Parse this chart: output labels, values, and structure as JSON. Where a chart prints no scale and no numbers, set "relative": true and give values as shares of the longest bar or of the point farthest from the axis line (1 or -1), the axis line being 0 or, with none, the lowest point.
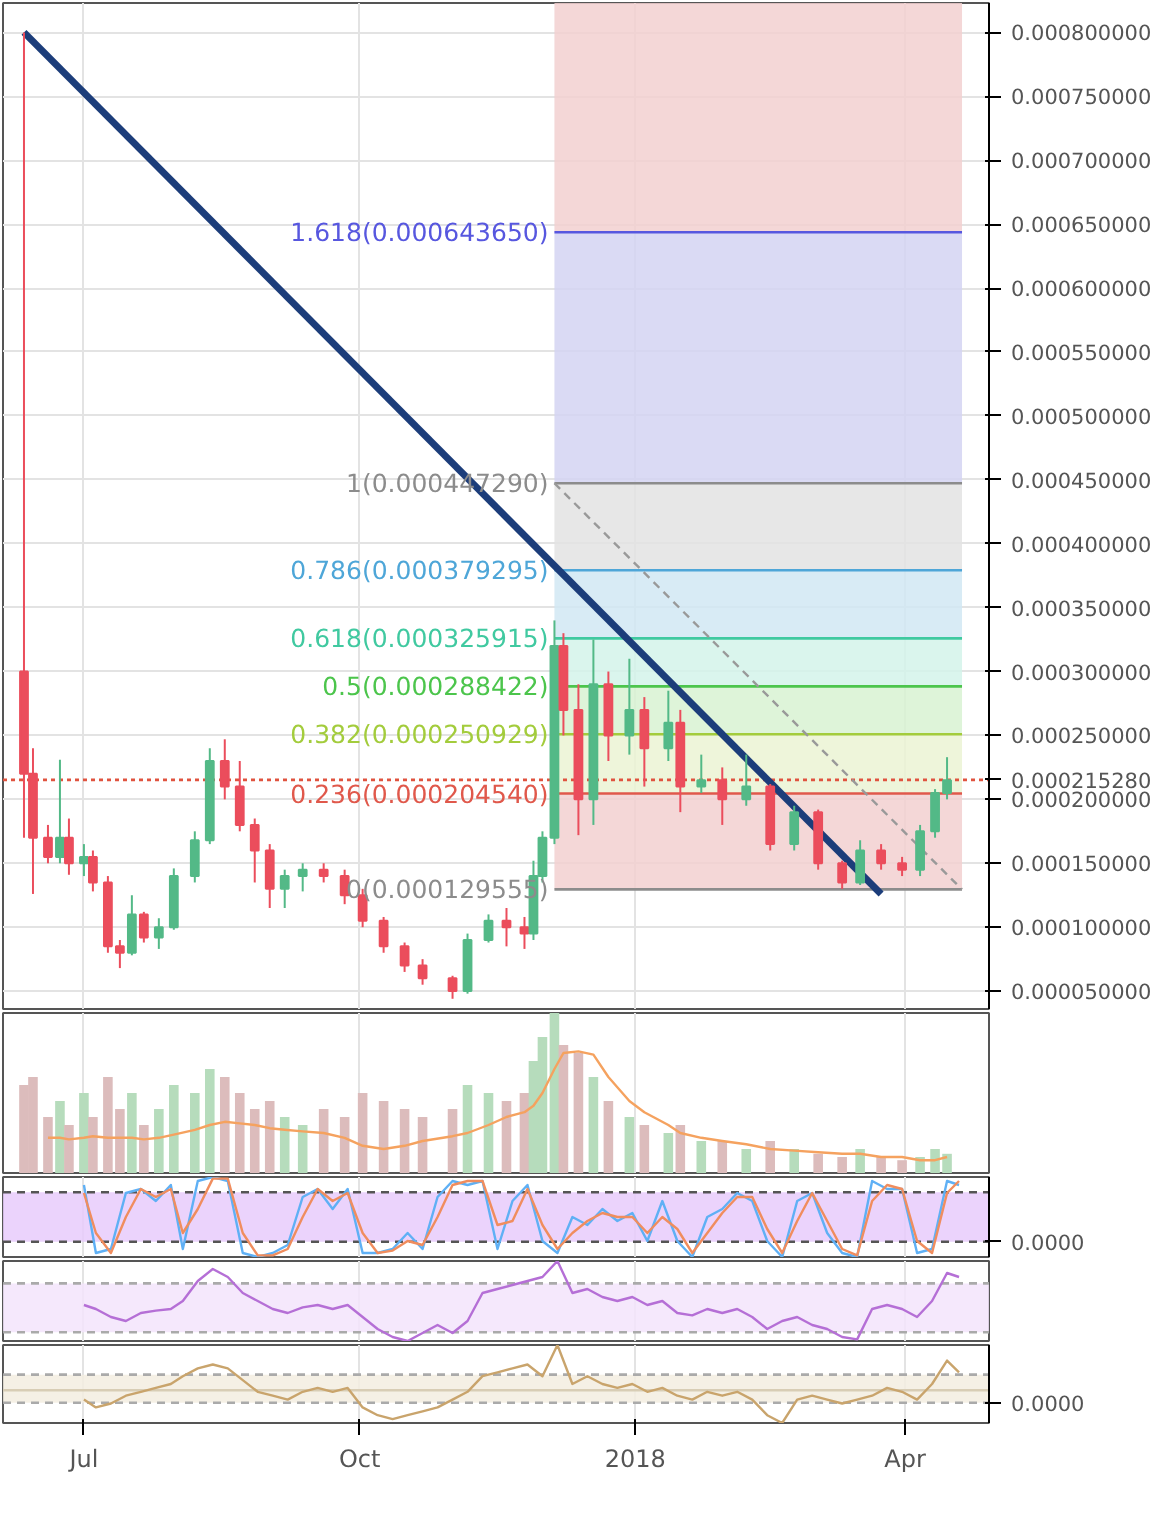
{
  "chart_data": [
    {
      "type": "candlestick",
      "xlim": [
        "2017-06-04",
        "2018-04-29"
      ],
      "ylim": [
        3.6e-05,
        0.000823
      ],
      "tick_labels": "y",
      "grid": true,
      "xticks": [
        {
          "value": "2017-07-01",
          "label": null
        },
        {
          "value": "2017-10-01",
          "label": null
        },
        {
          "value": "2018-01-01",
          "label": null
        },
        {
          "value": "2018-04-01",
          "label": null
        }
      ],
      "yticks": [
        {
          "value": 5e-05,
          "label": "0.000050000"
        },
        {
          "value": 0.0001,
          "label": "0.000100000"
        },
        {
          "value": 0.00015,
          "label": "0.000150000"
        },
        {
          "value": 0.0002,
          "label": "0.000200000"
        },
        {
          "value": 0.00025,
          "label": "0.000250000"
        },
        {
          "value": 0.0003,
          "label": "0.000300000"
        },
        {
          "value": 0.00035,
          "label": "0.000350000"
        },
        {
          "value": 0.0004,
          "label": "0.000400000"
        },
        {
          "value": 0.00045,
          "label": "0.000450000"
        },
        {
          "value": 0.0005,
          "label": "0.000500000"
        },
        {
          "value": 0.00055,
          "label": "0.000550000"
        },
        {
          "value": 0.0006,
          "label": "0.000600000"
        },
        {
          "value": 0.00065,
          "label": "0.000650000"
        },
        {
          "value": 0.0007,
          "label": "0.000700000"
        },
        {
          "value": 0.00075,
          "label": "0.000750000"
        },
        {
          "value": 0.0008,
          "label": "0.000800000"
        }
      ],
      "x": [
        "2017-06-11",
        "2017-06-14",
        "2017-06-19",
        "2017-06-23",
        "2017-06-26",
        "2017-07-01",
        "2017-07-04",
        "2017-07-09",
        "2017-07-13",
        "2017-07-17",
        "2017-07-21",
        "2017-07-26",
        "2017-07-31",
        "2017-08-07",
        "2017-08-12",
        "2017-08-17",
        "2017-08-22",
        "2017-08-27",
        "2017-09-01",
        "2017-09-06",
        "2017-09-12",
        "2017-09-19",
        "2017-09-26",
        "2017-10-02",
        "2017-10-09",
        "2017-10-16",
        "2017-10-22",
        "2017-11-01",
        "2017-11-06",
        "2017-11-13",
        "2017-11-19",
        "2017-11-25",
        "2017-11-28",
        "2017-12-01",
        "2017-12-05",
        "2017-12-08",
        "2017-12-13",
        "2017-12-18",
        "2017-12-23",
        "2017-12-30",
        "2018-01-04",
        "2018-01-12",
        "2018-01-16",
        "2018-01-23",
        "2018-01-30",
        "2018-02-07",
        "2018-02-15",
        "2018-02-23",
        "2018-03-03",
        "2018-03-11",
        "2018-03-17",
        "2018-03-24",
        "2018-03-31",
        "2018-04-06",
        "2018-04-11",
        "2018-04-15"
      ],
      "ohlc": [
        [
          0.0003,
          0.0008,
          0.00017,
          0.00022
        ],
        [
          0.00022,
          0.00024,
          0.000126,
          0.00017
        ],
        [
          0.00017,
          0.00018,
          0.00015,
          0.000155
        ],
        [
          0.000155,
          0.000231,
          0.00015,
          0.00017
        ],
        [
          0.00017,
          0.000185,
          0.000141,
          0.00015
        ],
        [
          0.00015,
          0.000165,
          0.00014,
          0.000155
        ],
        [
          0.000155,
          0.00016,
          0.000128,
          0.000135
        ],
        [
          0.000135,
          0.00014,
          8e-05,
          8.5e-05
        ],
        [
          8.5e-05,
          9e-05,
          6.8e-05,
          8e-05
        ],
        [
          8e-05,
          0.000125,
          7.8e-05,
          0.00011
        ],
        [
          0.00011,
          0.000112,
          8.8e-05,
          9.2e-05
        ],
        [
          9.2e-05,
          0.000107,
          8.3e-05,
          0.0001
        ],
        [
          0.0001,
          0.000146,
          9.8e-05,
          0.00014
        ],
        [
          0.00014,
          0.000175,
          0.000135,
          0.000168
        ],
        [
          0.000168,
          0.00024,
          0.000165,
          0.00023
        ],
        [
          0.00023,
          0.000247,
          0.0002,
          0.00021
        ],
        [
          0.00021,
          0.00023,
          0.000175,
          0.00018
        ],
        [
          0.00018,
          0.000185,
          0.000135,
          0.00016
        ],
        [
          0.00016,
          0.000165,
          0.000115,
          0.00013
        ],
        [
          0.00013,
          0.000145,
          0.000115,
          0.00014
        ],
        [
          0.00014,
          0.00015,
          0.000128,
          0.000145
        ],
        [
          0.000145,
          0.00015,
          0.000135,
          0.00014
        ],
        [
          0.00014,
          0.000145,
          0.000118,
          0.000125
        ],
        [
          0.000125,
          0.00013,
          0.0001,
          0.000105
        ],
        [
          0.000105,
          0.000108,
          8e-05,
          8.5e-05
        ],
        [
          8.5e-05,
          8.8e-05,
          6.5e-05,
          7e-05
        ],
        [
          7e-05,
          7.5e-05,
          5.5e-05,
          6e-05
        ],
        [
          6e-05,
          6.2e-05,
          4.4e-05,
          5e-05
        ],
        [
          5e-05,
          9.5e-05,
          4.8e-05,
          9e-05
        ],
        [
          9e-05,
          0.00011,
          8.8e-05,
          0.000105
        ],
        [
          0.000105,
          0.000115,
          8.5e-05,
          0.0001
        ],
        [
          0.0001,
          0.000108,
          8.3e-05,
          9.5e-05
        ],
        [
          9.5e-05,
          0.000152,
          9e-05,
          0.00014
        ],
        [
          0.00014,
          0.000175,
          0.000135,
          0.00017
        ],
        [
          0.00017,
          0.00034,
          0.000165,
          0.00032
        ],
        [
          0.00032,
          0.00033,
          0.00025,
          0.00027
        ],
        [
          0.00027,
          0.00029,
          0.000172,
          0.0002
        ],
        [
          0.0002,
          0.000325,
          0.00018,
          0.00029
        ],
        [
          0.00029,
          0.0003,
          0.00023,
          0.00025
        ],
        [
          0.00025,
          0.00031,
          0.000235,
          0.00027
        ],
        [
          0.00027,
          0.00028,
          0.00021,
          0.00024
        ],
        [
          0.00024,
          0.000285,
          0.00023,
          0.00026
        ],
        [
          0.00026,
          0.00027,
          0.00019,
          0.00021
        ],
        [
          0.00021,
          0.000235,
          0.000205,
          0.000215
        ],
        [
          0.000215,
          0.000225,
          0.00018,
          0.0002
        ],
        [
          0.0002,
          0.000235,
          0.000195,
          0.00021
        ],
        [
          0.00021,
          0.000212,
          0.00016,
          0.000165
        ],
        [
          0.000165,
          0.000195,
          0.00016,
          0.00019
        ],
        [
          0.00019,
          0.000192,
          0.000145,
          0.00015
        ],
        [
          0.00015,
          0.000152,
          0.00013,
          0.000135
        ],
        [
          0.000135,
          0.000168,
          0.000133,
          0.00016
        ],
        [
          0.00016,
          0.000165,
          0.000145,
          0.00015
        ],
        [
          0.00015,
          0.000155,
          0.00014,
          0.000145
        ],
        [
          0.000145,
          0.00018,
          0.00014,
          0.000175
        ],
        [
          0.000175,
          0.000208,
          0.00017,
          0.000205
        ],
        [
          0.000205,
          0.000233,
          0.0002,
          0.000215
        ]
      ],
      "colors": [
        "#eb4d5c",
        "#eb4d5c",
        "#eb4d5c",
        "#53b987",
        "#eb4d5c",
        "#53b987",
        "#eb4d5c",
        "#eb4d5c",
        "#eb4d5c",
        "#53b987",
        "#eb4d5c",
        "#53b987",
        "#53b987",
        "#53b987",
        "#53b987",
        "#eb4d5c",
        "#eb4d5c",
        "#eb4d5c",
        "#eb4d5c",
        "#53b987",
        "#53b987",
        "#eb4d5c",
        "#eb4d5c",
        "#eb4d5c",
        "#eb4d5c",
        "#eb4d5c",
        "#eb4d5c",
        "#eb4d5c",
        "#53b987",
        "#53b987",
        "#eb4d5c",
        "#eb4d5c",
        "#53b987",
        "#53b987",
        "#53b987",
        "#eb4d5c",
        "#eb4d5c",
        "#53b987",
        "#eb4d5c",
        "#53b987",
        "#eb4d5c",
        "#53b987",
        "#eb4d5c",
        "#53b987",
        "#eb4d5c",
        "#53b987",
        "#eb4d5c",
        "#53b987",
        "#eb4d5c",
        "#eb4d5c",
        "#53b987",
        "#eb4d5c",
        "#eb4d5c",
        "#53b987",
        "#53b987",
        "#53b987"
      ],
      "series": [
        {
          "type": "line",
          "color": "#1c3d7a",
          "x": [
            "2017-06-11",
            "2018-03-24"
          ],
          "values": [
            0.0008,
            0.000126
          ]
        },
        {
          "type": "line",
          "color": "#999999",
          "line_style": "dashed",
          "x": [
            "2017-12-05",
            "2018-04-20"
          ],
          "values": [
            0.00044729,
            0.000129555
          ]
        }
      ],
      "bands": [
        {
          "axis": "y",
          "from": 0.00064365,
          "to": 0.000823,
          "color": "#f2d0d0"
        },
        {
          "axis": "y",
          "from": 0.00044729,
          "to": 0.00064365,
          "color": "#d3d3f2"
        },
        {
          "axis": "y",
          "from": 0.000379295,
          "to": 0.00044729,
          "color": "#e3e3e3"
        },
        {
          "axis": "y",
          "from": 0.000325915,
          "to": 0.000379295,
          "color": "#d1e7f3"
        },
        {
          "axis": "y",
          "from": 0.000288422,
          "to": 0.000325915,
          "color": "#d3f3ea"
        },
        {
          "axis": "y",
          "from": 0.000250929,
          "to": 0.000288422,
          "color": "#d8f2d2"
        },
        {
          "axis": "y",
          "from": 0.00020454,
          "to": 0.000250929,
          "color": "#ebf3d4"
        },
        {
          "axis": "y",
          "from": 0.000129555,
          "to": 0.00020454,
          "color": "#f2d0d0"
        }
      ],
      "ref_lines": [
        {
          "axis": "y",
          "value": 0.00064365,
          "label": "1.618(0.000643650)",
          "color": "#5757df"
        },
        {
          "axis": "y",
          "value": 0.00044729,
          "label": "1(0.000447290)",
          "color": "#8c8c8c"
        },
        {
          "axis": "y",
          "value": 0.000379295,
          "label": "0.786(0.000379295)",
          "color": "#4ea6d8"
        },
        {
          "axis": "y",
          "value": 0.000325915,
          "label": "0.618(0.000325915)",
          "color": "#40c9a0"
        },
        {
          "axis": "y",
          "value": 0.000288422,
          "label": "0.5(0.000288422)",
          "color": "#4cc54c"
        },
        {
          "axis": "y",
          "value": 0.000250929,
          "label": "0.382(0.000250929)",
          "color": "#a3cc3c"
        },
        {
          "axis": "y",
          "value": 0.00020454,
          "label": "0.236(0.000204540)",
          "color": "#e0584b"
        },
        {
          "axis": "y",
          "value": 0.000129555,
          "label": "0(0.000129555)",
          "color": "#8c8c8c"
        },
        {
          "axis": "y",
          "value": 0.00021528,
          "label": "0.000215280",
          "color": "#e0533f",
          "line_style": "dotted"
        }
      ]
    },
    {
      "type": "bar",
      "relative": true,
      "tick_labels": false,
      "grid": "x",
      "xlim": [
        "2017-06-04",
        "2018-04-29"
      ],
      "xticks": [
        {
          "value": "2017-07-01",
          "label": null
        },
        {
          "value": "2017-10-01",
          "label": null
        },
        {
          "value": "2018-01-01",
          "label": null
        },
        {
          "value": "2018-04-01",
          "label": null
        }
      ],
      "x": [
        "2017-06-11",
        "2017-06-14",
        "2017-06-19",
        "2017-06-23",
        "2017-06-26",
        "2017-07-01",
        "2017-07-04",
        "2017-07-09",
        "2017-07-13",
        "2017-07-17",
        "2017-07-21",
        "2017-07-26",
        "2017-07-31",
        "2017-08-07",
        "2017-08-12",
        "2017-08-17",
        "2017-08-22",
        "2017-08-27",
        "2017-09-01",
        "2017-09-06",
        "2017-09-12",
        "2017-09-19",
        "2017-09-26",
        "2017-10-02",
        "2017-10-09",
        "2017-10-16",
        "2017-10-22",
        "2017-11-01",
        "2017-11-06",
        "2017-11-13",
        "2017-11-19",
        "2017-11-25",
        "2017-11-28",
        "2017-12-01",
        "2017-12-05",
        "2017-12-08",
        "2017-12-13",
        "2017-12-18",
        "2017-12-23",
        "2017-12-30",
        "2018-01-04",
        "2018-01-12",
        "2018-01-16",
        "2018-01-23",
        "2018-01-30",
        "2018-02-07",
        "2018-02-15",
        "2018-02-23",
        "2018-03-03",
        "2018-03-11",
        "2018-03-17",
        "2018-03-24",
        "2018-03-31",
        "2018-04-06",
        "2018-04-11",
        "2018-04-15"
      ],
      "series": [
        {
          "type": "bar",
          "values": [
            0.55,
            0.6,
            0.35,
            0.45,
            0.3,
            0.5,
            0.35,
            0.6,
            0.4,
            0.5,
            0.3,
            0.4,
            0.55,
            0.5,
            0.65,
            0.6,
            0.5,
            0.4,
            0.45,
            0.35,
            0.3,
            0.4,
            0.35,
            0.5,
            0.45,
            0.4,
            0.35,
            0.4,
            0.55,
            0.5,
            0.45,
            0.5,
            0.7,
            0.85,
            1.0,
            0.8,
            0.75,
            0.6,
            0.45,
            0.35,
            0.3,
            0.25,
            0.3,
            0.2,
            0.2,
            0.15,
            0.2,
            0.15,
            0.12,
            0.1,
            0.15,
            0.1,
            0.08,
            0.1,
            0.15,
            0.12
          ],
          "colors": [
            "#dcbcbc",
            "#dcbcbc",
            "#dcbcbc",
            "#b6dcbc",
            "#dcbcbc",
            "#b6dcbc",
            "#dcbcbc",
            "#dcbcbc",
            "#dcbcbc",
            "#b6dcbc",
            "#dcbcbc",
            "#b6dcbc",
            "#b6dcbc",
            "#b6dcbc",
            "#b6dcbc",
            "#dcbcbc",
            "#dcbcbc",
            "#dcbcbc",
            "#dcbcbc",
            "#b6dcbc",
            "#b6dcbc",
            "#dcbcbc",
            "#dcbcbc",
            "#dcbcbc",
            "#dcbcbc",
            "#dcbcbc",
            "#dcbcbc",
            "#dcbcbc",
            "#b6dcbc",
            "#b6dcbc",
            "#dcbcbc",
            "#dcbcbc",
            "#b6dcbc",
            "#b6dcbc",
            "#b6dcbc",
            "#dcbcbc",
            "#dcbcbc",
            "#b6dcbc",
            "#dcbcbc",
            "#b6dcbc",
            "#dcbcbc",
            "#b6dcbc",
            "#dcbcbc",
            "#b6dcbc",
            "#dcbcbc",
            "#b6dcbc",
            "#dcbcbc",
            "#b6dcbc",
            "#dcbcbc",
            "#dcbcbc",
            "#b6dcbc",
            "#dcbcbc",
            "#dcbcbc",
            "#b6dcbc",
            "#b6dcbc",
            "#b6dcbc"
          ]
        },
        {
          "type": "line",
          "color": "#f5a25f",
          "values": [
            null,
            null,
            0.22,
            0.22,
            0.21,
            0.22,
            0.23,
            0.22,
            0.22,
            0.22,
            0.21,
            0.22,
            0.24,
            0.27,
            0.3,
            0.32,
            0.31,
            0.3,
            0.28,
            0.27,
            0.26,
            0.25,
            0.22,
            0.17,
            0.15,
            0.17,
            0.2,
            0.23,
            0.25,
            0.3,
            0.35,
            0.38,
            0.42,
            0.5,
            0.65,
            0.75,
            0.76,
            0.74,
            0.6,
            0.45,
            0.38,
            0.3,
            0.25,
            0.22,
            0.2,
            0.18,
            0.15,
            0.14,
            0.13,
            0.12,
            0.12,
            0.1,
            0.1,
            0.08,
            0.08,
            0.1
          ]
        }
      ]
    },
    {
      "type": "line",
      "relative": true,
      "tick_labels": false,
      "grid": "x",
      "xlim": [
        "2017-06-04",
        "2018-04-29"
      ],
      "xticks": [
        {
          "value": "2017-07-01",
          "label": null
        },
        {
          "value": "2017-10-01",
          "label": null
        },
        {
          "value": "2018-01-01",
          "label": null
        },
        {
          "value": "2018-04-01",
          "label": null
        }
      ],
      "annotations": [
        "0.0000"
      ],
      "bands": [
        {
          "axis": "y",
          "from": 0.19,
          "to": 0.81,
          "color": "#e8cbfb"
        }
      ],
      "ref_lines": [
        {
          "axis": "y",
          "value": 0.19,
          "color": "#555555",
          "line_style": "dashed"
        },
        {
          "axis": "y",
          "value": 0.81,
          "color": "#555555",
          "line_style": "dashed"
        }
      ],
      "x": [
        "2017-07-01",
        "2017-07-05",
        "2017-07-10",
        "2017-07-15",
        "2017-07-20",
        "2017-07-25",
        "2017-07-30",
        "2017-08-03",
        "2017-08-08",
        "2017-08-13",
        "2017-08-18",
        "2017-08-23",
        "2017-08-28",
        "2017-09-02",
        "2017-09-07",
        "2017-09-12",
        "2017-09-17",
        "2017-09-22",
        "2017-09-27",
        "2017-10-02",
        "2017-10-07",
        "2017-10-12",
        "2017-10-17",
        "2017-10-22",
        "2017-10-27",
        "2017-11-01",
        "2017-11-06",
        "2017-11-11",
        "2017-11-16",
        "2017-11-21",
        "2017-11-26",
        "2017-12-01",
        "2017-12-06",
        "2017-12-11",
        "2017-12-16",
        "2017-12-21",
        "2017-12-26",
        "2017-12-31",
        "2018-01-05",
        "2018-01-10",
        "2018-01-15",
        "2018-01-20",
        "2018-01-25",
        "2018-01-30",
        "2018-02-04",
        "2018-02-09",
        "2018-02-14",
        "2018-02-19",
        "2018-02-24",
        "2018-03-01",
        "2018-03-06",
        "2018-03-11",
        "2018-03-16",
        "2018-03-21",
        "2018-03-26",
        "2018-03-31",
        "2018-04-05",
        "2018-04-10",
        "2018-04-15",
        "2018-04-19"
      ],
      "series": [
        {
          "color": "#5fb0f5",
          "values": [
            0.9,
            0.05,
            0.1,
            0.8,
            0.85,
            0.7,
            0.9,
            0.1,
            0.95,
            1.0,
            0.95,
            0.05,
            0.0,
            0.05,
            0.15,
            0.75,
            0.85,
            0.6,
            0.85,
            0.05,
            0.05,
            0.1,
            0.3,
            0.1,
            0.75,
            0.95,
            0.9,
            0.95,
            0.1,
            0.7,
            0.9,
            0.2,
            0.05,
            0.5,
            0.4,
            0.6,
            0.45,
            0.55,
            0.2,
            0.7,
            0.2,
            0.0,
            0.5,
            0.6,
            0.8,
            0.7,
            0.2,
            0.0,
            0.7,
            0.8,
            0.3,
            0.05,
            0.0,
            0.95,
            0.85,
            0.85,
            0.05,
            0.1,
            0.95,
            0.9
          ]
        },
        {
          "color": "#f08d5e",
          "values": [
            0.8,
            0.3,
            0.05,
            0.5,
            0.85,
            0.75,
            0.85,
            0.3,
            0.6,
            0.98,
            0.98,
            0.3,
            0.02,
            0.02,
            0.1,
            0.5,
            0.85,
            0.7,
            0.8,
            0.3,
            0.05,
            0.08,
            0.2,
            0.15,
            0.5,
            0.9,
            0.95,
            0.95,
            0.4,
            0.45,
            0.85,
            0.4,
            0.1,
            0.3,
            0.45,
            0.55,
            0.5,
            0.5,
            0.3,
            0.5,
            0.35,
            0.05,
            0.3,
            0.55,
            0.75,
            0.75,
            0.35,
            0.05,
            0.45,
            0.8,
            0.45,
            0.1,
            0.02,
            0.7,
            0.9,
            0.85,
            0.2,
            0.05,
            0.8,
            0.95
          ]
        }
      ]
    },
    {
      "type": "line",
      "relative": true,
      "tick_labels": false,
      "grid": "x",
      "xlim": [
        "2017-06-04",
        "2018-04-29"
      ],
      "xticks": [
        {
          "value": "2017-07-01",
          "label": null
        },
        {
          "value": "2017-10-01",
          "label": null
        },
        {
          "value": "2018-01-01",
          "label": null
        },
        {
          "value": "2018-04-01",
          "label": null
        }
      ],
      "bands": [
        {
          "axis": "y",
          "from": 0.11,
          "to": 0.72,
          "color": "#f3e4fc"
        }
      ],
      "ref_lines": [
        {
          "axis": "y",
          "value": 0.11,
          "color": "#aaaaaa",
          "line_style": "dashed"
        },
        {
          "axis": "y",
          "value": 0.72,
          "color": "#aaaaaa",
          "line_style": "dashed"
        }
      ],
      "x": [
        "2017-07-01",
        "2017-07-05",
        "2017-07-10",
        "2017-07-15",
        "2017-07-20",
        "2017-07-25",
        "2017-07-30",
        "2017-08-03",
        "2017-08-08",
        "2017-08-13",
        "2017-08-18",
        "2017-08-23",
        "2017-08-28",
        "2017-09-02",
        "2017-09-07",
        "2017-09-12",
        "2017-09-17",
        "2017-09-22",
        "2017-09-27",
        "2017-10-02",
        "2017-10-07",
        "2017-10-12",
        "2017-10-17",
        "2017-10-22",
        "2017-10-27",
        "2017-11-01",
        "2017-11-06",
        "2017-11-11",
        "2017-11-16",
        "2017-11-21",
        "2017-11-26",
        "2017-12-01",
        "2017-12-06",
        "2017-12-11",
        "2017-12-16",
        "2017-12-21",
        "2017-12-26",
        "2017-12-31",
        "2018-01-05",
        "2018-01-10",
        "2018-01-15",
        "2018-01-20",
        "2018-01-25",
        "2018-01-30",
        "2018-02-04",
        "2018-02-09",
        "2018-02-14",
        "2018-02-19",
        "2018-02-24",
        "2018-03-01",
        "2018-03-06",
        "2018-03-11",
        "2018-03-16",
        "2018-03-21",
        "2018-03-26",
        "2018-03-31",
        "2018-04-05",
        "2018-04-10",
        "2018-04-15",
        "2018-04-19"
      ],
      "series": [
        {
          "color": "#b56fd6",
          "values": [
            0.45,
            0.4,
            0.3,
            0.25,
            0.35,
            0.38,
            0.4,
            0.5,
            0.75,
            0.9,
            0.8,
            0.6,
            0.5,
            0.4,
            0.35,
            0.42,
            0.45,
            0.4,
            0.45,
            0.3,
            0.15,
            0.05,
            0.0,
            0.1,
            0.2,
            0.1,
            0.25,
            0.6,
            0.65,
            0.7,
            0.75,
            0.8,
            1.0,
            0.6,
            0.65,
            0.55,
            0.5,
            0.55,
            0.45,
            0.5,
            0.35,
            0.32,
            0.4,
            0.35,
            0.4,
            0.3,
            0.15,
            0.25,
            0.3,
            0.2,
            0.15,
            0.05,
            0.02,
            0.4,
            0.45,
            0.4,
            0.3,
            0.5,
            0.85,
            0.8
          ]
        }
      ]
    },
    {
      "type": "line",
      "relative": true,
      "tick_labels": "x",
      "grid": "x",
      "xlim": [
        "2017-06-04",
        "2018-04-29"
      ],
      "xticks": [
        {
          "value": "2017-07-01",
          "label": "Jul"
        },
        {
          "value": "2017-10-01",
          "label": "Oct"
        },
        {
          "value": "2018-01-01",
          "label": "2018"
        },
        {
          "value": "2018-04-01",
          "label": "Apr"
        }
      ],
      "annotations": [
        "0.0000"
      ],
      "bands": [
        {
          "axis": "y",
          "from": 0.26,
          "to": 0.62,
          "color": "#f3ede0"
        }
      ],
      "ref_lines": [
        {
          "axis": "y",
          "value": 0.26,
          "color": "#aaaaaa",
          "line_style": "dashed"
        },
        {
          "axis": "y",
          "value": 0.62,
          "color": "#aaaaaa",
          "line_style": "dashed"
        },
        {
          "axis": "y",
          "value": 0.42,
          "color": "#d8cdb5",
          "line_style": "solid"
        }
      ],
      "x": [
        "2017-07-01",
        "2017-07-05",
        "2017-07-10",
        "2017-07-15",
        "2017-07-20",
        "2017-07-25",
        "2017-07-30",
        "2017-08-03",
        "2017-08-08",
        "2017-08-13",
        "2017-08-18",
        "2017-08-23",
        "2017-08-28",
        "2017-09-02",
        "2017-09-07",
        "2017-09-12",
        "2017-09-17",
        "2017-09-22",
        "2017-09-27",
        "2017-10-02",
        "2017-10-07",
        "2017-10-12",
        "2017-10-17",
        "2017-10-22",
        "2017-10-27",
        "2017-11-01",
        "2017-11-06",
        "2017-11-11",
        "2017-11-16",
        "2017-11-21",
        "2017-11-26",
        "2017-12-01",
        "2017-12-06",
        "2017-12-11",
        "2017-12-16",
        "2017-12-21",
        "2017-12-26",
        "2017-12-31",
        "2018-01-05",
        "2018-01-10",
        "2018-01-15",
        "2018-01-20",
        "2018-01-25",
        "2018-01-30",
        "2018-02-04",
        "2018-02-09",
        "2018-02-14",
        "2018-02-19",
        "2018-02-24",
        "2018-03-01",
        "2018-03-06",
        "2018-03-11",
        "2018-03-16",
        "2018-03-21",
        "2018-03-26",
        "2018-03-31",
        "2018-04-05",
        "2018-04-10",
        "2018-04-15",
        "2018-04-19"
      ],
      "series": [
        {
          "color": "#c9a46c",
          "values": [
            0.3,
            0.2,
            0.25,
            0.35,
            0.4,
            0.45,
            0.5,
            0.6,
            0.7,
            0.75,
            0.7,
            0.55,
            0.4,
            0.35,
            0.3,
            0.4,
            0.45,
            0.4,
            0.45,
            0.2,
            0.1,
            0.05,
            0.1,
            0.15,
            0.2,
            0.3,
            0.4,
            0.6,
            0.65,
            0.7,
            0.75,
            0.6,
            1.0,
            0.5,
            0.6,
            0.5,
            0.45,
            0.5,
            0.4,
            0.45,
            0.35,
            0.3,
            0.4,
            0.35,
            0.4,
            0.3,
            0.1,
            0.0,
            0.3,
            0.35,
            0.3,
            0.25,
            0.3,
            0.35,
            0.45,
            0.4,
            0.3,
            0.5,
            0.8,
            0.65
          ]
        }
      ]
    }
  ]
}
